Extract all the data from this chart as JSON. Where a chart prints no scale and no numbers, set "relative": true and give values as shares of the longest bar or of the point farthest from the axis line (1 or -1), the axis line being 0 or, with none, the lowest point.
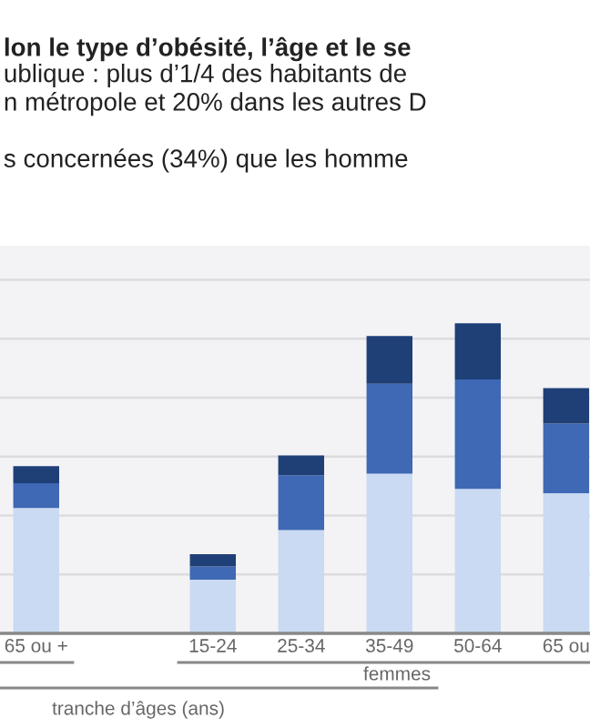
{
  "chart_data": {
    "type": "bar",
    "title": "lon le type d’obésité, l’âge et le se",
    "subtitle": "ublique : plus d’1/4 des habitants de\nn métropole et 20% dans les autres D\n\ns concernées (34%) que les homme",
    "xlabel": "tranche d’âges (ans)",
    "annotations": [
      "femmes"
    ],
    "categories": [
      "65 ou +",
      null,
      "15-24",
      "25-34",
      "35-49",
      "50-64",
      "65 ou"
    ],
    "stacked": true,
    "relative": true,
    "grid": "y",
    "series": [
      {
        "color": "#c9daf2",
        "values": [
          0.404,
          null,
          0.173,
          0.333,
          0.515,
          0.466,
          0.452
        ]
      },
      {
        "color": "#3f68b5",
        "values": [
          0.08,
          null,
          0.043,
          0.177,
          0.29,
          0.353,
          0.224
        ]
      },
      {
        "color": "#1f3f77",
        "values": [
          0.055,
          null,
          0.039,
          0.064,
          0.154,
          0.181,
          0.115
        ]
      }
    ]
  }
}
